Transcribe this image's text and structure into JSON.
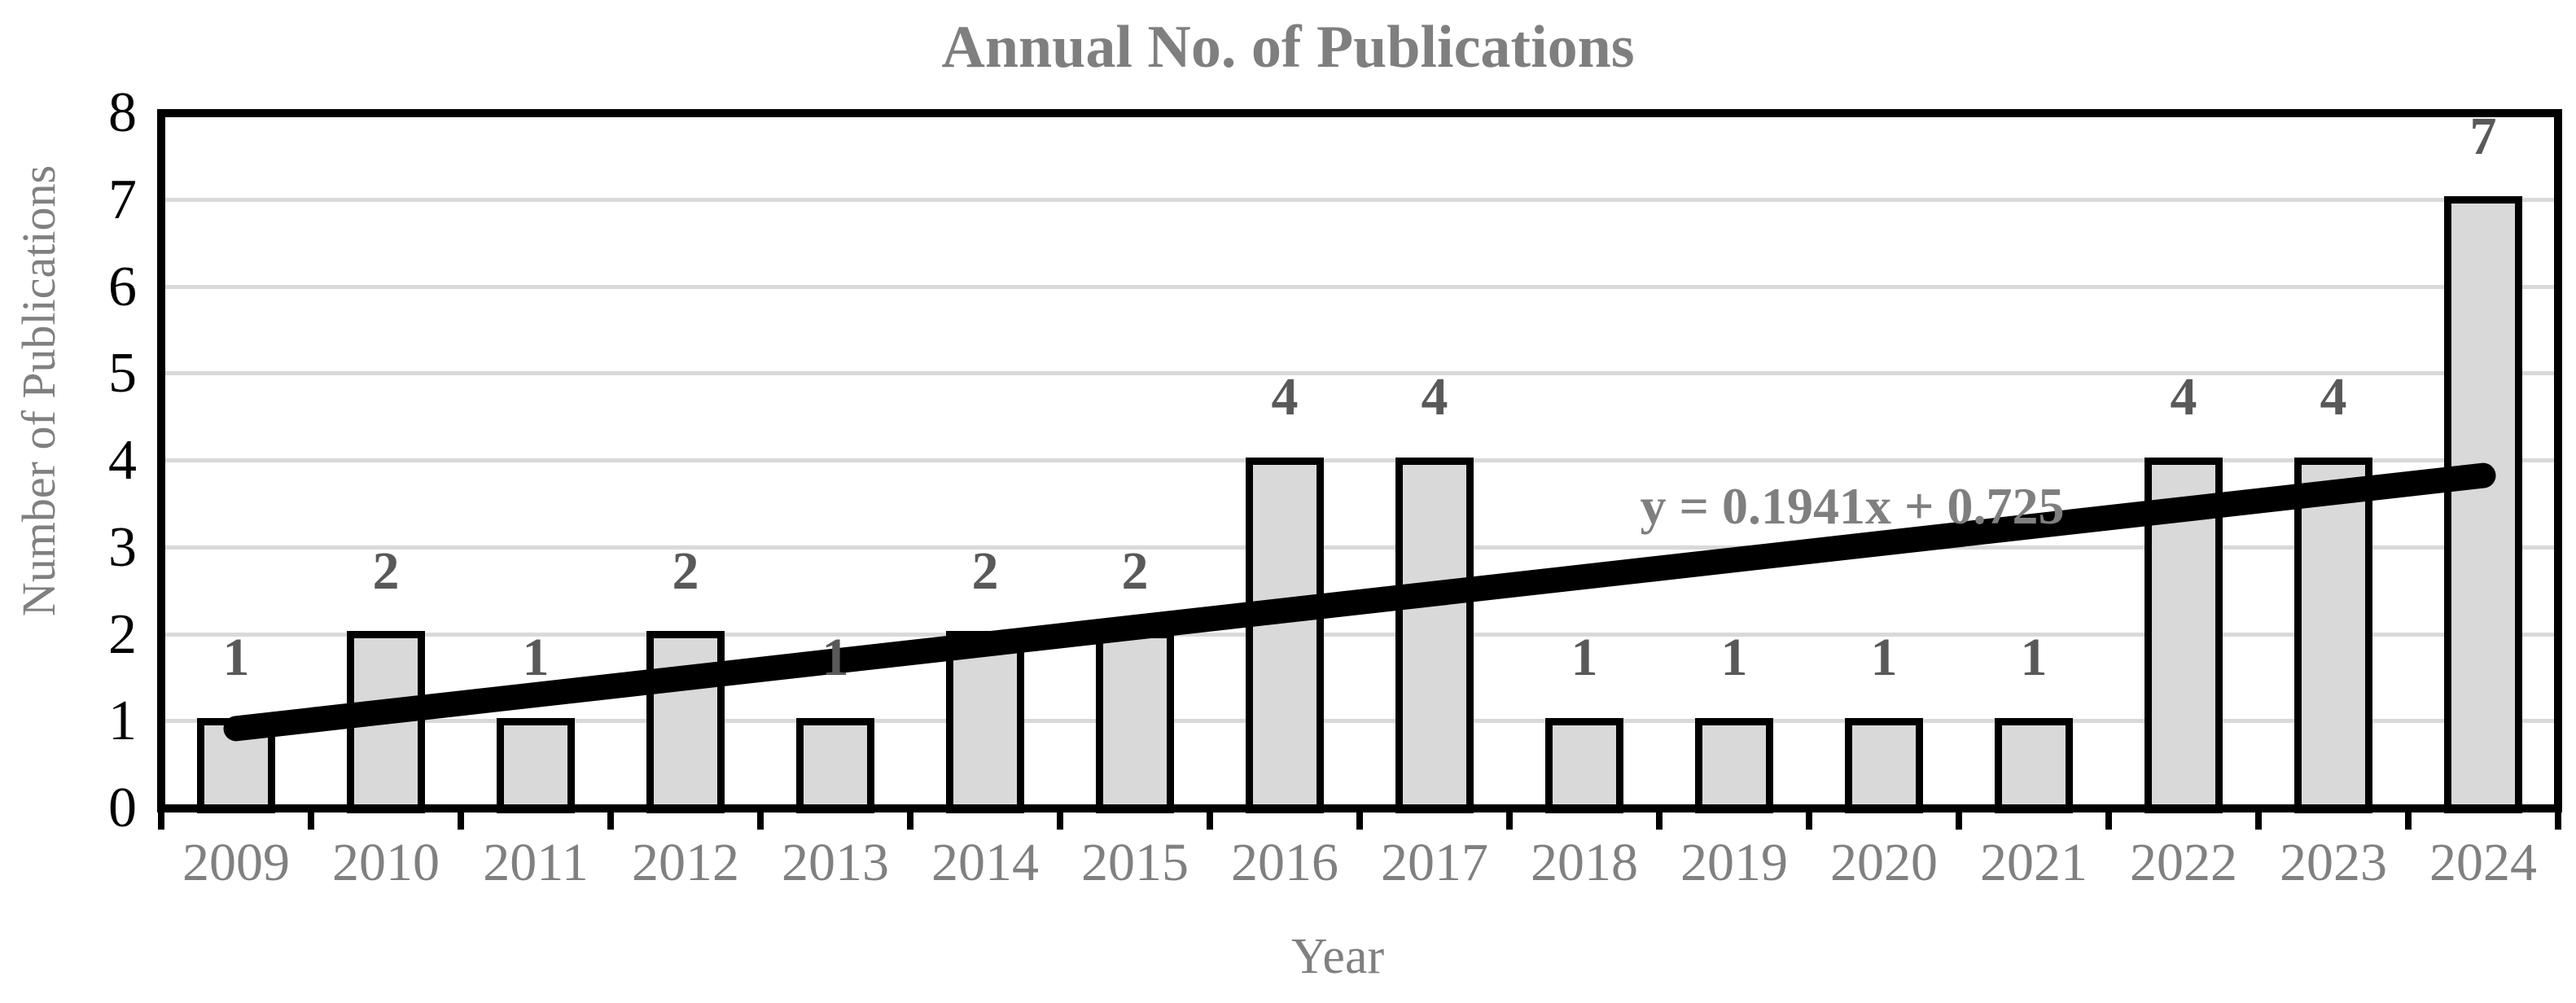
{
  "title": "Annual No. of Publications",
  "chart_data": {
    "type": "bar",
    "title": "Annual No. of Publications",
    "xlabel": "Year",
    "ylabel": "Number of Publications",
    "categories": [
      "2009",
      "2010",
      "2011",
      "2012",
      "2013",
      "2014",
      "2015",
      "2016",
      "2017",
      "2018",
      "2019",
      "2020",
      "2021",
      "2022",
      "2023",
      "2024"
    ],
    "values": [
      1,
      2,
      1,
      2,
      1,
      2,
      2,
      4,
      4,
      1,
      1,
      1,
      1,
      4,
      4,
      7
    ],
    "data_labels": [
      "1",
      "2",
      "1",
      "2",
      "1",
      "2",
      "2",
      "4",
      "4",
      "1",
      "1",
      "1",
      "1",
      "4",
      "4",
      "7"
    ],
    "ylim": [
      0,
      8
    ],
    "ytick_step": 1,
    "yticks": [
      "0",
      "1",
      "2",
      "3",
      "4",
      "5",
      "6",
      "7",
      "8"
    ],
    "grid": true,
    "legend": "none",
    "trendline": {
      "type": "linear",
      "equation_label": "y = 0.1941x + 0.725",
      "slope": 0.1941,
      "intercept": 0.725,
      "x_domain": [
        1,
        16
      ],
      "color": "#000000"
    },
    "colors": {
      "bar_fill": "#d9d9d9",
      "bar_border": "#000000",
      "gridline": "#d9d9d9",
      "plot_border": "#000000",
      "title_text": "#7f7f7f",
      "axis_title_text": "#808080",
      "y_tick_text": "#000000",
      "x_tick_text": "#808080",
      "data_label_text": "#595959",
      "equation_text": "#7f7f7f",
      "background": "#ffffff"
    }
  }
}
